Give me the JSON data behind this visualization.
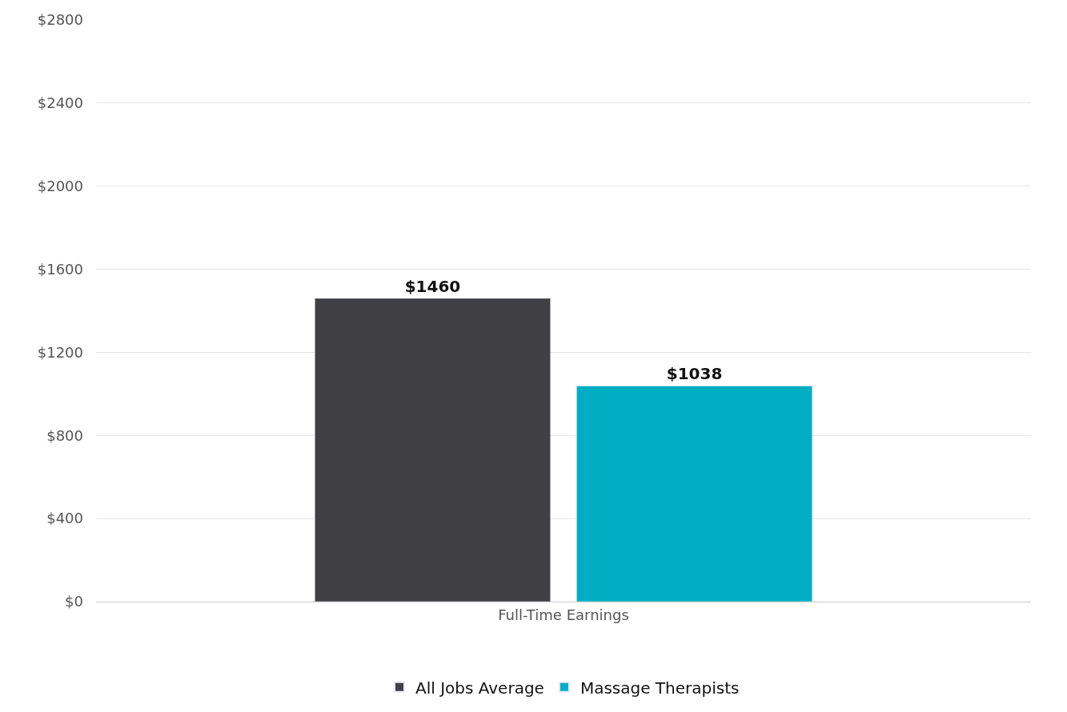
{
  "chart_data": {
    "type": "bar",
    "categories": [
      "Full-Time Earnings"
    ],
    "series": [
      {
        "name": "All Jobs Average",
        "color": "#3f3f44",
        "values": [
          1460
        ],
        "value_labels": [
          "$1460"
        ]
      },
      {
        "name": "Massage Therapists",
        "color": "#00aec3",
        "values": [
          1038
        ],
        "value_labels": [
          "$1038"
        ]
      }
    ],
    "ylim": [
      0,
      2800
    ],
    "yticks": [
      {
        "value": 0,
        "label": "$0"
      },
      {
        "value": 400,
        "label": "$400"
      },
      {
        "value": 800,
        "label": "$800"
      },
      {
        "value": 1200,
        "label": "$1200"
      },
      {
        "value": 1600,
        "label": "$1600"
      },
      {
        "value": 2000,
        "label": "$2000"
      },
      {
        "value": 2400,
        "label": "$2400"
      },
      {
        "value": 2800,
        "label": "$2800"
      }
    ],
    "grid": "y",
    "legend": "bottom"
  }
}
